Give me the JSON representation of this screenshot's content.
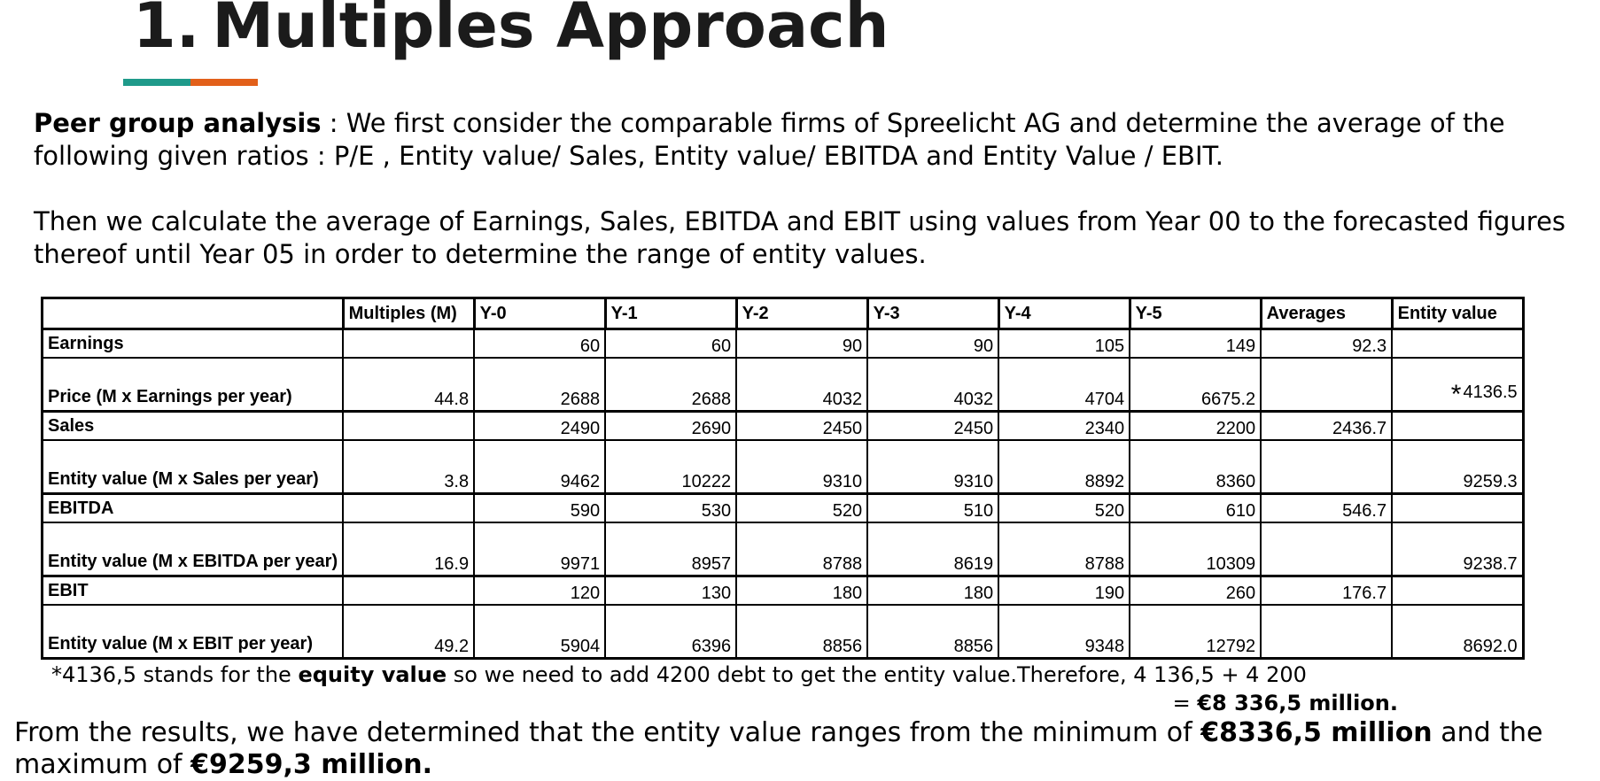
{
  "header": {
    "number": "1.",
    "title": "Multiples Approach"
  },
  "accent_colors": {
    "teal": "#1f9a8a",
    "orange": "#e2601a"
  },
  "intro": {
    "p1_bold": "Peer group analysis",
    "p1_rest": " : We first consider the comparable firms of Spreelicht AG and determine the average of the following given ratios  : P/E , Entity value/ Sales, Entity value/ EBITDA and  Entity Value / EBIT.",
    "p2": "Then we calculate the average of Earnings, Sales, EBITDA and EBIT using values from Year 00 to  the forecasted figures thereof until Year 05 in order to determine the range of entity values."
  },
  "table": {
    "headers": [
      "",
      "Multiples (M)",
      "Y-0",
      "Y-1",
      "Y-2",
      "Y-3",
      "Y-4",
      "Y-5",
      "Averages",
      "Entity value"
    ],
    "rows": [
      {
        "label": "Earnings",
        "multiple": "",
        "values": [
          "60",
          "60",
          "90",
          "90",
          "105",
          "149"
        ],
        "average": "92.3",
        "entity": ""
      },
      {
        "label": "Price (M x Earnings per year)",
        "multiple": "44.8",
        "values": [
          "2688",
          "2688",
          "4032",
          "4032",
          "4704",
          "6675.2"
        ],
        "average": "",
        "entity_mark": "*",
        "entity": "4136.5"
      },
      {
        "label": "Sales",
        "multiple": "",
        "values": [
          "2490",
          "2690",
          "2450",
          "2450",
          "2340",
          "2200"
        ],
        "average": "2436.7",
        "entity": ""
      },
      {
        "label": "Entity value (M x Sales per year)",
        "multiple": "3.8",
        "values": [
          "9462",
          "10222",
          "9310",
          "9310",
          "8892",
          "8360"
        ],
        "average": "",
        "entity": "9259.3"
      },
      {
        "label": "EBITDA",
        "multiple": "",
        "values": [
          "590",
          "530",
          "520",
          "510",
          "520",
          "610"
        ],
        "average": "546.7",
        "entity": ""
      },
      {
        "label": "Entity value (M x EBITDA per year)",
        "multiple": "16.9",
        "values": [
          "9971",
          "8957",
          "8788",
          "8619",
          "8788",
          "10309"
        ],
        "average": "",
        "entity": "9238.7"
      },
      {
        "label": "EBIT",
        "multiple": "",
        "values": [
          "120",
          "130",
          "180",
          "180",
          "190",
          "260"
        ],
        "average": "176.7",
        "entity": ""
      },
      {
        "label": "Entity value (M x EBIT per year)",
        "multiple": "49.2",
        "values": [
          "5904",
          "6396",
          "8856",
          "8856",
          "9348",
          "12792"
        ],
        "average": "",
        "entity": "8692.0"
      }
    ]
  },
  "note": {
    "pre": "*4136,5 stands for the ",
    "bold": "equity value",
    "post": " so we need to add 4200 debt to get the entity value.Therefore, 4 136,5 + 4 200",
    "line2_pre": "= ",
    "line2_bold": "€8 336,5 million."
  },
  "conclusion": {
    "pre": "From the results, we have determined that the entity value ranges from the minimum of  ",
    "min_bold": "€8336,5 million",
    "mid": " and the maximum of ",
    "max_bold": "€9259,3 million."
  }
}
